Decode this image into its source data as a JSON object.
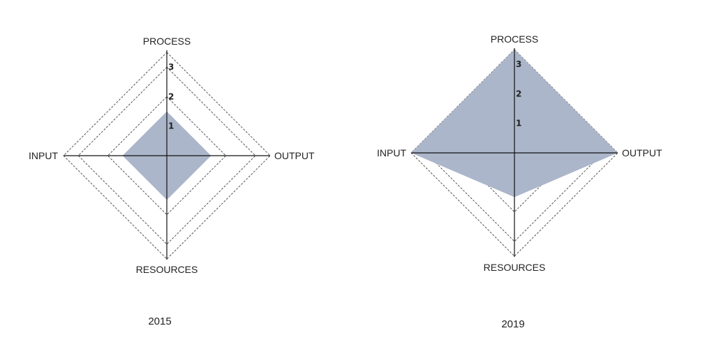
{
  "chart_data": [
    {
      "type": "radar",
      "title": "2015",
      "axes": [
        "PROCESS",
        "OUTPUT",
        "RESOURCES",
        "INPUT"
      ],
      "ticks": [
        "1",
        "2",
        "3"
      ],
      "range": [
        0,
        3.5
      ],
      "grid": true,
      "values": [
        1.5,
        1.5,
        1.5,
        1.5
      ],
      "fill_color": "#abb6ca"
    },
    {
      "type": "radar",
      "title": "2019",
      "axes": [
        "PROCESS",
        "OUTPUT",
        "RESOURCES",
        "INPUT"
      ],
      "ticks": [
        "1",
        "2",
        "3"
      ],
      "range": [
        0,
        3.5
      ],
      "grid": true,
      "values": [
        3.5,
        3.5,
        1.5,
        3.5
      ],
      "fill_color": "#abb6ca"
    }
  ],
  "colors": {
    "fill": "#abb6ca",
    "axis": "#111111",
    "grid": "#555555"
  }
}
